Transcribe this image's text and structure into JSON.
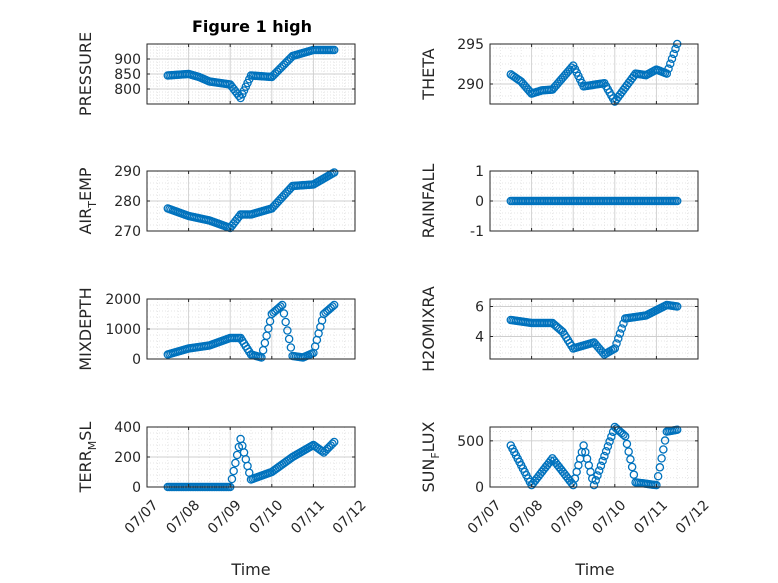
{
  "figure": {
    "title": "Figure 1 high",
    "xlabel": "Time",
    "colors": {
      "marker": "#0072BD",
      "grid": "#dedede",
      "axis": "#262626"
    },
    "xticks": [
      "07/07",
      "07/08",
      "07/09",
      "07/10",
      "07/11",
      "07/12"
    ]
  },
  "chart_data": [
    {
      "type": "scatter",
      "key": "pressure",
      "ylabel": "PRESSURE",
      "ylim": [
        750,
        950
      ],
      "yticks": [
        800,
        850,
        900
      ],
      "x": [
        "07/07 12:00",
        "07/08 00:00",
        "07/08 06:00",
        "07/08 12:00",
        "07/09 00:00",
        "07/09 06:00",
        "07/09 12:00",
        "07/10 00:00",
        "07/10 12:00",
        "07/11 00:00",
        "07/11 12:00"
      ],
      "y": [
        845,
        850,
        840,
        825,
        815,
        770,
        845,
        840,
        910,
        930,
        930
      ]
    },
    {
      "type": "scatter",
      "key": "theta",
      "ylabel": "THETA",
      "ylim": [
        287.5,
        295
      ],
      "yticks": [
        290,
        295
      ],
      "x": [
        "07/07 12:00",
        "07/07 18:00",
        "07/08 00:00",
        "07/08 06:00",
        "07/08 12:00",
        "07/09 00:00",
        "07/09 06:00",
        "07/09 18:00",
        "07/10 00:00",
        "07/10 12:00",
        "07/10 18:00",
        "07/11 00:00",
        "07/11 06:00",
        "07/11 12:00"
      ],
      "y": [
        291.2,
        290.3,
        288.8,
        289.2,
        289.3,
        292.3,
        289.7,
        290.1,
        287.8,
        291.3,
        291.1,
        291.8,
        291.3,
        295.0
      ]
    },
    {
      "type": "scatter",
      "key": "air_temp",
      "ylabel_main": "AIR",
      "ylabel_sub": "T",
      "ylabel_rest": "EMP",
      "ylim": [
        270,
        290
      ],
      "yticks": [
        270,
        280,
        290
      ],
      "x": [
        "07/07 12:00",
        "07/08 00:00",
        "07/08 12:00",
        "07/09 00:00",
        "07/09 06:00",
        "07/09 12:00",
        "07/10 00:00",
        "07/10 12:00",
        "07/11 00:00",
        "07/11 12:00"
      ],
      "y": [
        277.5,
        275,
        273.5,
        271,
        275.5,
        275.5,
        277.5,
        285,
        285.5,
        289.5
      ]
    },
    {
      "type": "scatter",
      "key": "rainfall",
      "ylabel": "RAINFALL",
      "ylim": [
        -1,
        1
      ],
      "yticks": [
        -1,
        0,
        1
      ],
      "x": [
        "07/07 12:00",
        "07/11 12:00"
      ],
      "y": [
        0,
        0
      ]
    },
    {
      "type": "scatter",
      "key": "mixdepth",
      "ylabel": "MIXDEPTH",
      "ylim": [
        0,
        2000
      ],
      "yticks": [
        0,
        1000,
        2000
      ],
      "x": [
        "07/07 12:00",
        "07/08 00:00",
        "07/08 12:00",
        "07/09 00:00",
        "07/09 06:00",
        "07/09 12:00",
        "07/09 18:00",
        "07/10 00:00",
        "07/10 06:00",
        "07/10 12:00",
        "07/10 18:00",
        "07/11 00:00",
        "07/11 06:00",
        "07/11 12:00"
      ],
      "y": [
        150,
        350,
        450,
        700,
        700,
        150,
        50,
        1500,
        1800,
        100,
        50,
        200,
        1500,
        1800
      ]
    },
    {
      "type": "scatter",
      "key": "h2omixra",
      "ylabel": "H2OMIXRA",
      "ylim": [
        2.5,
        6.5
      ],
      "yticks": [
        4,
        6
      ],
      "x": [
        "07/07 12:00",
        "07/08 00:00",
        "07/08 12:00",
        "07/08 18:00",
        "07/09 00:00",
        "07/09 12:00",
        "07/09 18:00",
        "07/10 00:00",
        "07/10 06:00",
        "07/10 18:00",
        "07/11 06:00",
        "07/11 12:00"
      ],
      "y": [
        5.1,
        4.9,
        4.9,
        4.3,
        3.2,
        3.6,
        2.8,
        3.2,
        5.2,
        5.4,
        6.1,
        6.0
      ]
    },
    {
      "type": "scatter",
      "key": "terr_msl",
      "ylabel_main": "TERR",
      "ylabel_sub": "M",
      "ylabel_rest": "SL",
      "ylim": [
        0,
        400
      ],
      "yticks": [
        0,
        200,
        400
      ],
      "x": [
        "07/07 12:00",
        "07/08 12:00",
        "07/09 00:00",
        "07/09 06:00",
        "07/09 12:00",
        "07/10 00:00",
        "07/10 12:00",
        "07/11 00:00",
        "07/11 06:00",
        "07/11 12:00"
      ],
      "y": [
        0,
        0,
        0,
        320,
        50,
        100,
        200,
        280,
        230,
        300
      ]
    },
    {
      "type": "scatter",
      "key": "sun_flux",
      "ylabel_main": "SUN",
      "ylabel_sub": "F",
      "ylabel_rest": "LUX",
      "ylim": [
        0,
        650
      ],
      "yticks": [
        0,
        500
      ],
      "x": [
        "07/07 12:00",
        "07/08 00:00",
        "07/08 12:00",
        "07/09 00:00",
        "07/09 06:00",
        "07/09 12:00",
        "07/10 00:00",
        "07/10 06:00",
        "07/10 12:00",
        "07/11 00:00",
        "07/11 06:00",
        "07/11 12:00"
      ],
      "y": [
        450,
        20,
        310,
        20,
        450,
        20,
        650,
        550,
        50,
        20,
        600,
        620
      ]
    }
  ]
}
